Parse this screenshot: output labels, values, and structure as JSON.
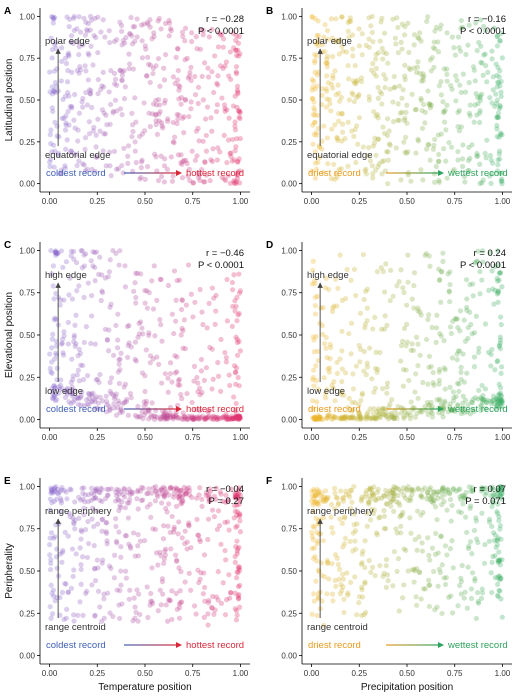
{
  "chart_data": [
    {
      "panel": "A",
      "type": "scatter",
      "ylabel": "Latitudinal position",
      "xlabel": "",
      "xlim": [
        0,
        1
      ],
      "ylim": [
        0,
        1
      ],
      "ticks": [
        "0.00",
        "0.25",
        "0.50",
        "0.75",
        "1.00"
      ],
      "stat_r": "r = −0.28",
      "stat_p": "P < 0.0001",
      "arrow_top": "polar edge",
      "arrow_bottom": "equatorial edge",
      "arrow_left": "coldest record",
      "arrow_right": "hottest record",
      "color_low": "#8a6fd1",
      "color_high": "#e3356f",
      "label_color_left": "#3f5fb5",
      "label_color_right": "#d8283a",
      "n_points": 520,
      "trend": -0.28,
      "cluster_right": 0.5
    },
    {
      "panel": "B",
      "type": "scatter",
      "ylabel": "",
      "xlabel": "",
      "xlim": [
        0,
        1
      ],
      "ylim": [
        0,
        1
      ],
      "ticks": [
        "0.00",
        "0.25",
        "0.50",
        "0.75",
        "1.00"
      ],
      "stat_r": "r = −0.16",
      "stat_p": "P < 0.0001",
      "arrow_top": "polar edge",
      "arrow_bottom": "equatorial edge",
      "arrow_left": "driest record",
      "arrow_right": "wettest record",
      "color_low": "#f0b429",
      "color_high": "#3fb06b",
      "label_color_left": "#e89a1c",
      "label_color_right": "#2ea35d",
      "n_points": 520,
      "trend": -0.16,
      "cluster_right": 0.45
    },
    {
      "panel": "C",
      "type": "scatter",
      "ylabel": "Elevational position",
      "xlabel": "",
      "xlim": [
        0,
        1
      ],
      "ylim": [
        0,
        1
      ],
      "ticks": [
        "0.00",
        "0.25",
        "0.50",
        "0.75",
        "1.00"
      ],
      "stat_r": "r = −0.46",
      "stat_p": "P < 0.0001",
      "arrow_top": "high edge",
      "arrow_bottom": "low edge",
      "arrow_left": "coldest record",
      "arrow_right": "hottest record",
      "color_low": "#8a6fd1",
      "color_high": "#e3356f",
      "label_color_left": "#3f5fb5",
      "label_color_right": "#d8283a",
      "n_points": 560,
      "trend": -0.46,
      "cluster_right": 0.0
    },
    {
      "panel": "D",
      "type": "scatter",
      "ylabel": "",
      "xlabel": "",
      "xlim": [
        0,
        1
      ],
      "ylim": [
        0,
        1
      ],
      "ticks": [
        "0.00",
        "0.25",
        "0.50",
        "0.75",
        "1.00"
      ],
      "stat_r": "r = 0.24",
      "stat_p": "P < 0.0001",
      "arrow_top": "high edge",
      "arrow_bottom": "low edge",
      "arrow_left": "driest record",
      "arrow_right": "wettest record",
      "color_low": "#f0b429",
      "color_high": "#3fb06b",
      "label_color_left": "#e89a1c",
      "label_color_right": "#2ea35d",
      "n_points": 560,
      "trend": 0.24,
      "cluster_right": 0.0
    },
    {
      "panel": "E",
      "type": "scatter",
      "ylabel": "Peripherality",
      "xlabel": "Temperature position",
      "xlim": [
        0,
        1
      ],
      "ylim": [
        0,
        1
      ],
      "ticks": [
        "0.00",
        "0.25",
        "0.50",
        "0.75",
        "1.00"
      ],
      "stat_r": "r = −0.04",
      "stat_p": "P = 0.27",
      "arrow_top": "range periphery",
      "arrow_bottom": "range centroid",
      "arrow_left": "coldest record",
      "arrow_right": "hottest record",
      "color_low": "#8a6fd1",
      "color_high": "#e3356f",
      "label_color_left": "#3f5fb5",
      "label_color_right": "#d8283a",
      "n_points": 520,
      "trend": -0.04,
      "cluster_right": 0.9
    },
    {
      "panel": "F",
      "type": "scatter",
      "ylabel": "",
      "xlabel": "Precipitation position",
      "xlim": [
        0,
        1
      ],
      "ylim": [
        0,
        1
      ],
      "ticks": [
        "0.00",
        "0.25",
        "0.50",
        "0.75",
        "1.00"
      ],
      "stat_r": "r = 0.07",
      "stat_p": "P = 0.071",
      "arrow_top": "range periphery",
      "arrow_bottom": "range centroid",
      "arrow_left": "driest record",
      "arrow_right": "wettest record",
      "color_low": "#f0b429",
      "color_high": "#3fb06b",
      "label_color_left": "#e89a1c",
      "label_color_right": "#2ea35d",
      "n_points": 520,
      "trend": 0.07,
      "cluster_right": 0.9
    }
  ]
}
